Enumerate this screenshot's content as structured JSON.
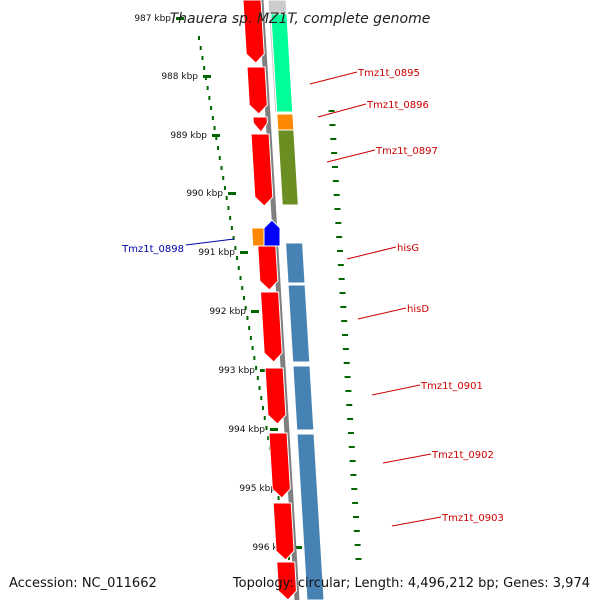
{
  "title": "Thauera sp. MZ1T, complete genome",
  "accession": "Accession: NC_011662",
  "topology": "Topology: circular; Length: 4,496,212 bp; Genes: 3,974",
  "ticks": [
    "987 kbp",
    "988 kbp",
    "989 kbp",
    "990 kbp",
    "991 kbp",
    "992 kbp",
    "993 kbp",
    "994 kbp",
    "995 kbp",
    "996 kbp"
  ],
  "genes": [
    {
      "label": "",
      "color": "#ff0000"
    },
    {
      "label": "Tmz1t_0895",
      "color": "#ff0000"
    },
    {
      "label": "Tmz1t_0896",
      "color": "#ff0000"
    },
    {
      "label": "Tmz1t_0897",
      "color": "#ff0000"
    },
    {
      "label": "Tmz1t_0898",
      "color": "#0000ff"
    },
    {
      "label": "hisG",
      "color": "#ff0000"
    },
    {
      "label": "hisD",
      "color": "#ff0000"
    },
    {
      "label": "Tmz1t_0901",
      "color": "#ff0000"
    },
    {
      "label": "Tmz1t_0902",
      "color": "#ff0000"
    },
    {
      "label": "Tmz1t_0903",
      "color": "#ff0000"
    },
    {
      "label": "",
      "color": "#ff0000"
    }
  ],
  "colors": {
    "forward_label": "#cc0000",
    "reverse_label": "#0000aa",
    "backbone": "#7f7f7f",
    "tick": "#006600",
    "cds_teal": "#00ff99",
    "cds_orange": "#ff8800",
    "cds_olive": "#6b8e23",
    "cds_steelblue": "#4682b4"
  }
}
